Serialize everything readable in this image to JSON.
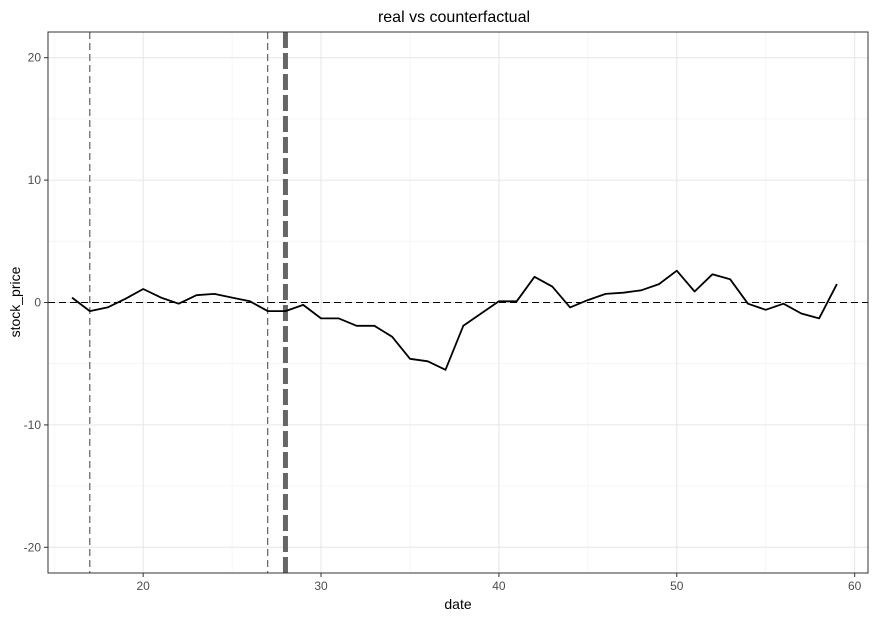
{
  "chart_data": {
    "type": "line",
    "title": "real vs counterfactual",
    "xlabel": "date",
    "ylabel": "stock_price",
    "xlim": [
      14.65,
      60.75
    ],
    "ylim": [
      -22.1,
      22.1
    ],
    "x_ticks": [
      20,
      30,
      40,
      50,
      60
    ],
    "y_ticks": [
      -20,
      -10,
      0,
      10,
      20
    ],
    "x_tick_labels": [
      "20",
      "30",
      "40",
      "50",
      "60"
    ],
    "y_tick_labels": [
      "-20",
      "-10",
      "0",
      "10",
      "20"
    ],
    "grid": true,
    "series": [
      {
        "x": [
          16,
          17,
          18,
          19,
          20,
          21,
          22,
          23,
          24,
          25,
          26,
          27,
          28,
          29,
          30,
          31,
          32,
          33,
          34,
          35,
          36,
          37,
          38,
          39,
          40,
          41,
          42,
          43,
          44,
          45,
          46,
          47,
          48,
          49,
          50,
          51,
          52,
          53,
          54,
          55,
          56,
          57,
          58,
          59
        ],
        "y": [
          0.4,
          -0.7,
          -0.4,
          0.3,
          1.1,
          0.4,
          -0.1,
          0.6,
          0.7,
          0.4,
          0.1,
          -0.7,
          -0.7,
          -0.2,
          -1.3,
          -1.3,
          -1.9,
          -1.9,
          -2.8,
          -4.6,
          -4.8,
          -5.5,
          -1.9,
          -0.9,
          0.1,
          0.1,
          2.1,
          1.3,
          -0.4,
          0.2,
          0.7,
          0.8,
          1.0,
          1.5,
          2.6,
          0.9,
          2.3,
          1.9,
          -0.1,
          -0.6,
          -0.1,
          -0.9,
          -1.3,
          1.5
        ],
        "color": "#000000"
      }
    ],
    "reference_lines": [
      {
        "orientation": "horizontal",
        "y": 0,
        "style": "dashed",
        "color": "#000000"
      },
      {
        "orientation": "vertical",
        "x": 17,
        "style": "dashed",
        "color": "#555555"
      },
      {
        "orientation": "vertical",
        "x": 27,
        "style": "dashed",
        "color": "#555555"
      },
      {
        "orientation": "vertical",
        "x": 28,
        "style": "dashed-thick",
        "color": "#666666"
      }
    ]
  }
}
